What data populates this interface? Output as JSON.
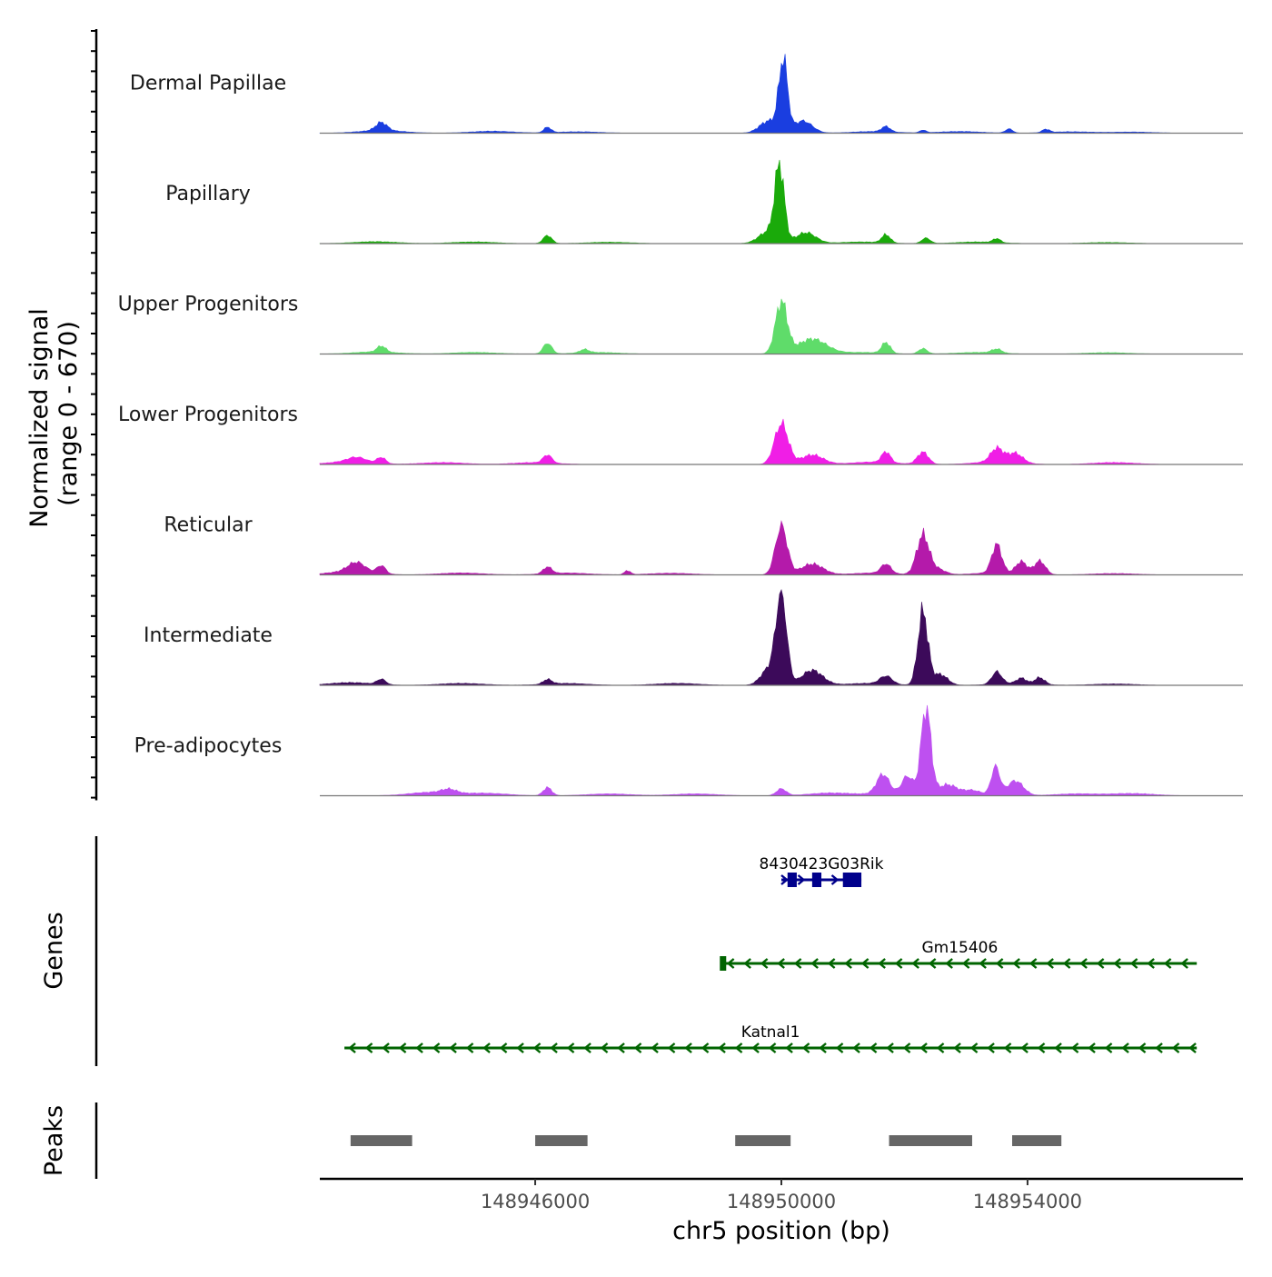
{
  "chart_data": {
    "type": "area",
    "region": {
      "chromosome": "chr5",
      "start": 148942500,
      "end": 148957500
    },
    "coverage": {
      "ylabel_line1": "Normalized signal",
      "ylabel_line2": "(range 0 - 670)",
      "range": [
        0,
        670
      ],
      "tracks": [
        {
          "name": "Dermal Papillae",
          "color": "#1a3ee0",
          "background": [
            [
              148943500,
              20
            ],
            [
              148945300,
              14
            ],
            [
              148946700,
              10
            ],
            [
              148951500,
              12
            ],
            [
              148952900,
              12
            ],
            [
              148954700,
              10
            ],
            [
              148955700,
              8
            ]
          ],
          "peaks": [
            [
              148943500,
              60,
              90
            ],
            [
              148946200,
              40,
              60
            ],
            [
              148949800,
              90,
              150
            ],
            [
              148950030,
              520,
              70
            ],
            [
              148950350,
              90,
              150
            ],
            [
              148951700,
              40,
              70
            ],
            [
              148952300,
              20,
              50
            ],
            [
              148953700,
              30,
              60
            ],
            [
              148954300,
              25,
              60
            ]
          ]
        },
        {
          "name": "Papillary",
          "color": "#1aaa0a",
          "background": [
            [
              148943400,
              14
            ],
            [
              148945000,
              12
            ],
            [
              148947200,
              10
            ],
            [
              148951300,
              12
            ],
            [
              148953200,
              12
            ],
            [
              148955300,
              8
            ]
          ],
          "peaks": [
            [
              148946200,
              60,
              70
            ],
            [
              148949800,
              90,
              160
            ],
            [
              148949970,
              540,
              75
            ],
            [
              148950400,
              80,
              160
            ],
            [
              148951700,
              60,
              70
            ],
            [
              148952350,
              40,
              70
            ],
            [
              148953500,
              30,
              60
            ]
          ]
        },
        {
          "name": "Upper Progenitors",
          "color": "#5fdc6a",
          "background": [
            [
              148943400,
              16
            ],
            [
              148945000,
              12
            ],
            [
              148947000,
              12
            ],
            [
              148951300,
              12
            ],
            [
              148953200,
              12
            ],
            [
              148955300,
              10
            ]
          ],
          "peaks": [
            [
              148943500,
              45,
              70
            ],
            [
              148946200,
              80,
              70
            ],
            [
              148946800,
              25,
              70
            ],
            [
              148950000,
              380,
              95
            ],
            [
              148950500,
              110,
              230
            ],
            [
              148951700,
              80,
              70
            ],
            [
              148952300,
              40,
              70
            ],
            [
              148953500,
              30,
              80
            ]
          ]
        },
        {
          "name": "Lower Progenitors",
          "color": "#f01ee6",
          "background": [
            [
              148943000,
              20
            ],
            [
              148944500,
              14
            ],
            [
              148946000,
              14
            ],
            [
              148951500,
              18
            ],
            [
              148953500,
              20
            ],
            [
              148955400,
              14
            ]
          ],
          "peaks": [
            [
              148943100,
              35,
              150
            ],
            [
              148943500,
              45,
              70
            ],
            [
              148946200,
              60,
              70
            ],
            [
              148950000,
              300,
              110
            ],
            [
              148950500,
              70,
              180
            ],
            [
              148951700,
              80,
              70
            ],
            [
              148952300,
              90,
              90
            ],
            [
              148953500,
              100,
              100
            ],
            [
              148953800,
              70,
              120
            ]
          ]
        },
        {
          "name": "Reticular",
          "color": "#b41aaa",
          "background": [
            [
              148943000,
              25
            ],
            [
              148944800,
              14
            ],
            [
              148946500,
              14
            ],
            [
              148948200,
              12
            ],
            [
              148951500,
              14
            ],
            [
              148953500,
              16
            ],
            [
              148955400,
              10
            ]
          ],
          "peaks": [
            [
              148943100,
              70,
              140
            ],
            [
              148943500,
              60,
              70
            ],
            [
              148946200,
              50,
              70
            ],
            [
              148947500,
              30,
              50
            ],
            [
              148950000,
              360,
              95
            ],
            [
              148950500,
              80,
              180
            ],
            [
              148951700,
              70,
              80
            ],
            [
              148952300,
              290,
              100
            ],
            [
              148952550,
              40,
              120
            ],
            [
              148953500,
              210,
              80
            ],
            [
              148953900,
              90,
              90
            ],
            [
              148954200,
              100,
              90
            ]
          ]
        },
        {
          "name": "Intermediate",
          "color": "#3c0a5a",
          "background": [
            [
              148943000,
              20
            ],
            [
              148944800,
              14
            ],
            [
              148946500,
              14
            ],
            [
              148948300,
              14
            ],
            [
              148951400,
              14
            ],
            [
              148953800,
              14
            ],
            [
              148955400,
              10
            ]
          ],
          "peaks": [
            [
              148943500,
              40,
              70
            ],
            [
              148946200,
              35,
              70
            ],
            [
              148949800,
              120,
              130
            ],
            [
              148950000,
              660,
              85
            ],
            [
              148950500,
              110,
              170
            ],
            [
              148951700,
              60,
              100
            ],
            [
              148952300,
              540,
              80
            ],
            [
              148952580,
              80,
              120
            ],
            [
              148953500,
              90,
              80
            ],
            [
              148953900,
              40,
              80
            ],
            [
              148954200,
              50,
              80
            ]
          ]
        },
        {
          "name": "Pre-adipocytes",
          "color": "#be50f0",
          "background": [
            [
              148944300,
              25
            ],
            [
              148945200,
              18
            ],
            [
              148947200,
              14
            ],
            [
              148948600,
              14
            ],
            [
              148950800,
              20
            ],
            [
              148951800,
              20
            ],
            [
              148954800,
              14
            ],
            [
              148955700,
              16
            ]
          ],
          "peaks": [
            [
              148944600,
              30,
              120
            ],
            [
              148946200,
              60,
              70
            ],
            [
              148950000,
              50,
              80
            ],
            [
              148951650,
              140,
              100
            ],
            [
              148952050,
              130,
              90
            ],
            [
              148952350,
              640,
              80
            ],
            [
              148952700,
              80,
              150
            ],
            [
              148953100,
              40,
              150
            ],
            [
              148953480,
              210,
              70
            ],
            [
              148953800,
              110,
              130
            ]
          ]
        }
      ]
    },
    "genes": {
      "ylabel": "Genes",
      "items": [
        {
          "name": "8430423G03Rik",
          "start": 148950000,
          "end": 148951300,
          "strand": "+",
          "color": "#00008b",
          "exons": [
            [
              148950100,
              148950250
            ],
            [
              148950500,
              148950650
            ],
            [
              148951000,
              148951300
            ]
          ]
        },
        {
          "name": "Gm15406",
          "start": 148949050,
          "end": 148956750,
          "strand": "-",
          "color": "#006400",
          "exons": [
            [
              148949000,
              148949100
            ]
          ]
        },
        {
          "name": "Katnal1",
          "start": 148942900,
          "end": 148956750,
          "strand": "-",
          "color": "#006400",
          "exons": []
        }
      ]
    },
    "peaks": {
      "ylabel": "Peaks",
      "color": "#666666",
      "regions": [
        [
          148943000,
          148944000
        ],
        [
          148946000,
          148946850
        ],
        [
          148949250,
          148950150
        ],
        [
          148951750,
          148953100
        ],
        [
          148953750,
          148954550
        ]
      ]
    },
    "x_axis": {
      "label": "chr5 position (bp)",
      "ticks": [
        148946000,
        148950000,
        148954000
      ],
      "tick_labels": [
        "148946000",
        "148950000",
        "148954000"
      ]
    }
  }
}
